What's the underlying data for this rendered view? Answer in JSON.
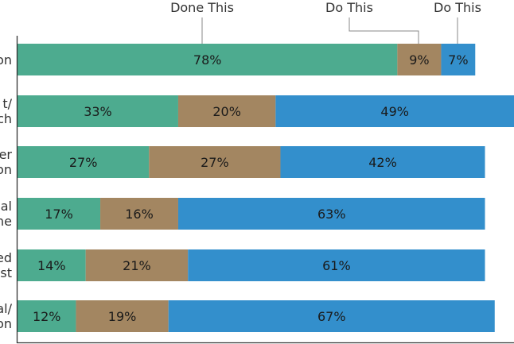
{
  "chart_data": {
    "type": "bar",
    "orientation": "horizontal",
    "stacked": true,
    "categories_partial": [
      "on",
      "t/ ch",
      "er on",
      "al ne",
      "ed st",
      "al/ on"
    ],
    "series": [
      {
        "name": "Done This",
        "color": "#4dab8f",
        "values": [
          78,
          33,
          27,
          17,
          14,
          12
        ]
      },
      {
        "name": "Do This",
        "color": "#a38661",
        "values": [
          9,
          20,
          27,
          16,
          21,
          19
        ]
      },
      {
        "name": "Do This",
        "color": "#338fcc",
        "values": [
          7,
          49,
          42,
          63,
          61,
          67
        ]
      }
    ],
    "value_labels": [
      [
        "78%",
        "9%",
        "7%"
      ],
      [
        "33%",
        "20%",
        "49%"
      ],
      [
        "27%",
        "27%",
        "42%"
      ],
      [
        "17%",
        "16%",
        "63%"
      ],
      [
        "14%",
        "21%",
        "61%"
      ],
      [
        "12%",
        "19%",
        "67%"
      ]
    ],
    "grid": false,
    "legend_placement": "top"
  }
}
